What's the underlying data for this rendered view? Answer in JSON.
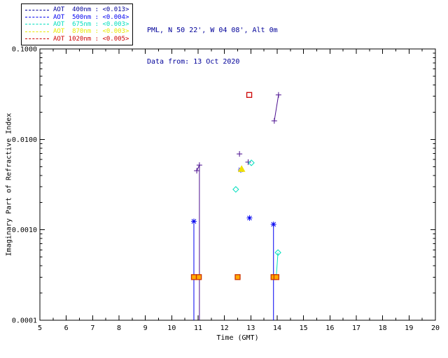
{
  "header": {
    "site": "PML, N 50 22', W 04 08', Alt 0m",
    "date_from": "Data from: 13 Oct 2020",
    "color": "#000099"
  },
  "legend": {
    "items": [
      {
        "label": "AOT  400nm : <0.013>",
        "color": "#000099"
      },
      {
        "label": "AOT  500nm : <0.004>",
        "color": "#0000f0"
      },
      {
        "label": "AOT  675nm : <0.003>",
        "color": "#00debe"
      },
      {
        "label": "AOT  870nm : <0.003>",
        "color": "#e8e800"
      },
      {
        "label": "AOT 1020nm : <0.005>",
        "color": "#cc0000"
      }
    ]
  },
  "chart_data": {
    "type": "scatter",
    "title": "",
    "xlabel": "Time (GMT)",
    "ylabel": "Imaginary Part of Refractive Index",
    "x_range": [
      5,
      20
    ],
    "y_range": [
      0.0001,
      0.1
    ],
    "y_scale": "log",
    "grid": false,
    "x_ticks": [
      5,
      6,
      7,
      8,
      9,
      10,
      11,
      12,
      13,
      14,
      15,
      16,
      17,
      18,
      19,
      20
    ],
    "y_ticks": [
      {
        "value": 0.1,
        "label": "0.1000"
      },
      {
        "value": 0.01,
        "label": "0.0100"
      },
      {
        "value": 0.001,
        "label": "0.0010"
      },
      {
        "value": 0.0001,
        "label": "0.0001"
      }
    ],
    "series": [
      {
        "name": "AOT-400nm",
        "marker": "plus",
        "color": "#4a0d8f",
        "points": [
          [
            10.95,
            0.0045
          ],
          [
            11.05,
            0.0052
          ],
          [
            12.57,
            0.0069
          ],
          [
            12.9,
            0.0056
          ],
          [
            13.89,
            0.016
          ],
          [
            14.05,
            0.031
          ]
        ],
        "lines": [
          [
            [
              10.95,
              0.0045
            ],
            [
              11.05,
              0.0052
            ]
          ],
          [
            [
              11.05,
              0.0052
            ],
            [
              11.05,
              0.0001
            ]
          ],
          [
            [
              13.89,
              0.016
            ],
            [
              14.05,
              0.031
            ]
          ]
        ]
      },
      {
        "name": "AOT-500nm",
        "marker": "asterisk",
        "color": "#0000f0",
        "points": [
          [
            10.84,
            0.00124
          ],
          [
            12.62,
            0.0046
          ],
          [
            12.95,
            0.00135
          ],
          [
            13.86,
            0.00115
          ]
        ],
        "lines": [
          [
            [
              10.84,
              0.00124
            ],
            [
              10.84,
              0.0001
            ]
          ],
          [
            [
              13.86,
              0.00115
            ],
            [
              13.86,
              0.0001
            ]
          ]
        ]
      },
      {
        "name": "AOT-675nm",
        "marker": "diamond",
        "color": "#00debe",
        "points": [
          [
            12.43,
            0.0028
          ],
          [
            13.02,
            0.0055
          ],
          [
            14.03,
            0.00056
          ]
        ],
        "lines": [
          [
            [
              14.03,
              0.00056
            ],
            [
              13.97,
              0.00032
            ]
          ]
        ]
      },
      {
        "name": "AOT-870nm",
        "marker": "triangle",
        "color": "#f0e000",
        "points": [
          [
            12.65,
            0.0047
          ]
        ]
      },
      {
        "name": "AOT-1020nm",
        "marker": "square",
        "color": "#cc0000",
        "points": [
          [
            10.84,
            0.0003,
            "#cc3300",
            "#ffaa00"
          ],
          [
            11.03,
            0.0003,
            "#cc3300",
            "#ffaa00"
          ],
          [
            12.5,
            0.0003,
            "#cc3300",
            "#ffaa00"
          ],
          [
            12.94,
            0.031
          ],
          [
            13.86,
            0.0003,
            "#cc3300",
            "#ffaa00"
          ],
          [
            13.97,
            0.0003,
            "#cc3300",
            "#ffaa00"
          ]
        ]
      }
    ]
  }
}
